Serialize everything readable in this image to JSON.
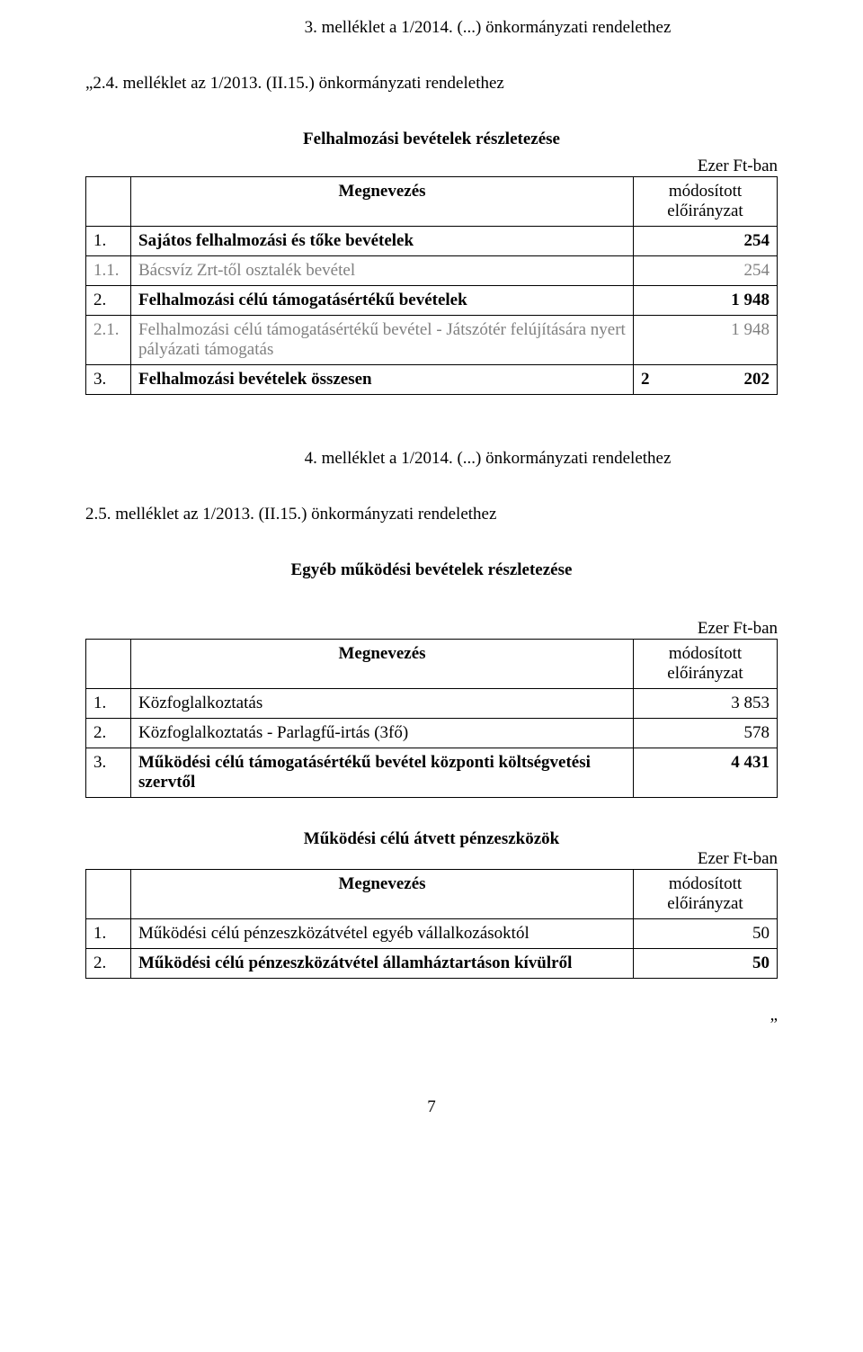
{
  "headers": {
    "line1": "3.   melléklet a 1/2014. (...) önkormányzati rendelethez",
    "line2": "„2.4. melléklet az 1/2013. (II.15.) önkormányzati rendelethez",
    "section1_title": "Felhalmozási bevételek részletezése",
    "unit": "Ezer Ft-ban",
    "col_name": "Megnevezés",
    "col_val": "módosított előirányzat",
    "line3": "4.   melléklet a 1/2014. (...) önkormányzati rendelethez",
    "line4": "2.5. melléklet az 1/2013. (II.15.) önkormányzati rendelethez",
    "section2_title": "Egyéb működési bevételek részletezése",
    "section3_title": "Működési célú átvett pénzeszközök"
  },
  "table1": {
    "rows": [
      {
        "num": "1.",
        "name": "Sajátos felhalmozási és tőke bevételek",
        "val": "254",
        "bold": true,
        "grey": false
      },
      {
        "num": "1.1.",
        "name": "Bácsvíz Zrt-től osztalék bevétel",
        "val": "254",
        "bold": false,
        "grey": true
      },
      {
        "num": "2.",
        "name": "Felhalmozási célú támogatásértékű bevételek",
        "val": "1 948",
        "bold": true,
        "grey": false
      },
      {
        "num": "2.1.",
        "name": "Felhalmozási célú támogatásértékű bevétel - Játszótér felújítására nyert pályázati támogatás",
        "val": "1 948",
        "bold": false,
        "grey": true
      },
      {
        "num": "3.",
        "name": "Felhalmozási bevételek összesen",
        "val_a": "2",
        "val_b": "202",
        "bold": true,
        "grey": false,
        "split": true
      }
    ]
  },
  "table2": {
    "rows": [
      {
        "num": "1.",
        "name": "Közfoglalkoztatás",
        "val": "3 853",
        "bold": false
      },
      {
        "num": "2.",
        "name": "Közfoglalkoztatás - Parlagfű-irtás (3fő)",
        "val": "578",
        "bold": false
      },
      {
        "num": "3.",
        "name": "Működési célú támogatásértékű bevétel központi költségvetési szervtől",
        "val": "4 431",
        "bold": true
      }
    ]
  },
  "table3": {
    "rows": [
      {
        "num": "1.",
        "name": "Működési célú pénzeszközátvétel egyéb vállalkozásoktól",
        "val": "50",
        "bold": false
      },
      {
        "num": "2.",
        "name": "Működési célú pénzeszközátvétel államháztartáson kívülről",
        "val": "50",
        "bold": true
      }
    ]
  },
  "page_number": "7",
  "trailing": "„"
}
